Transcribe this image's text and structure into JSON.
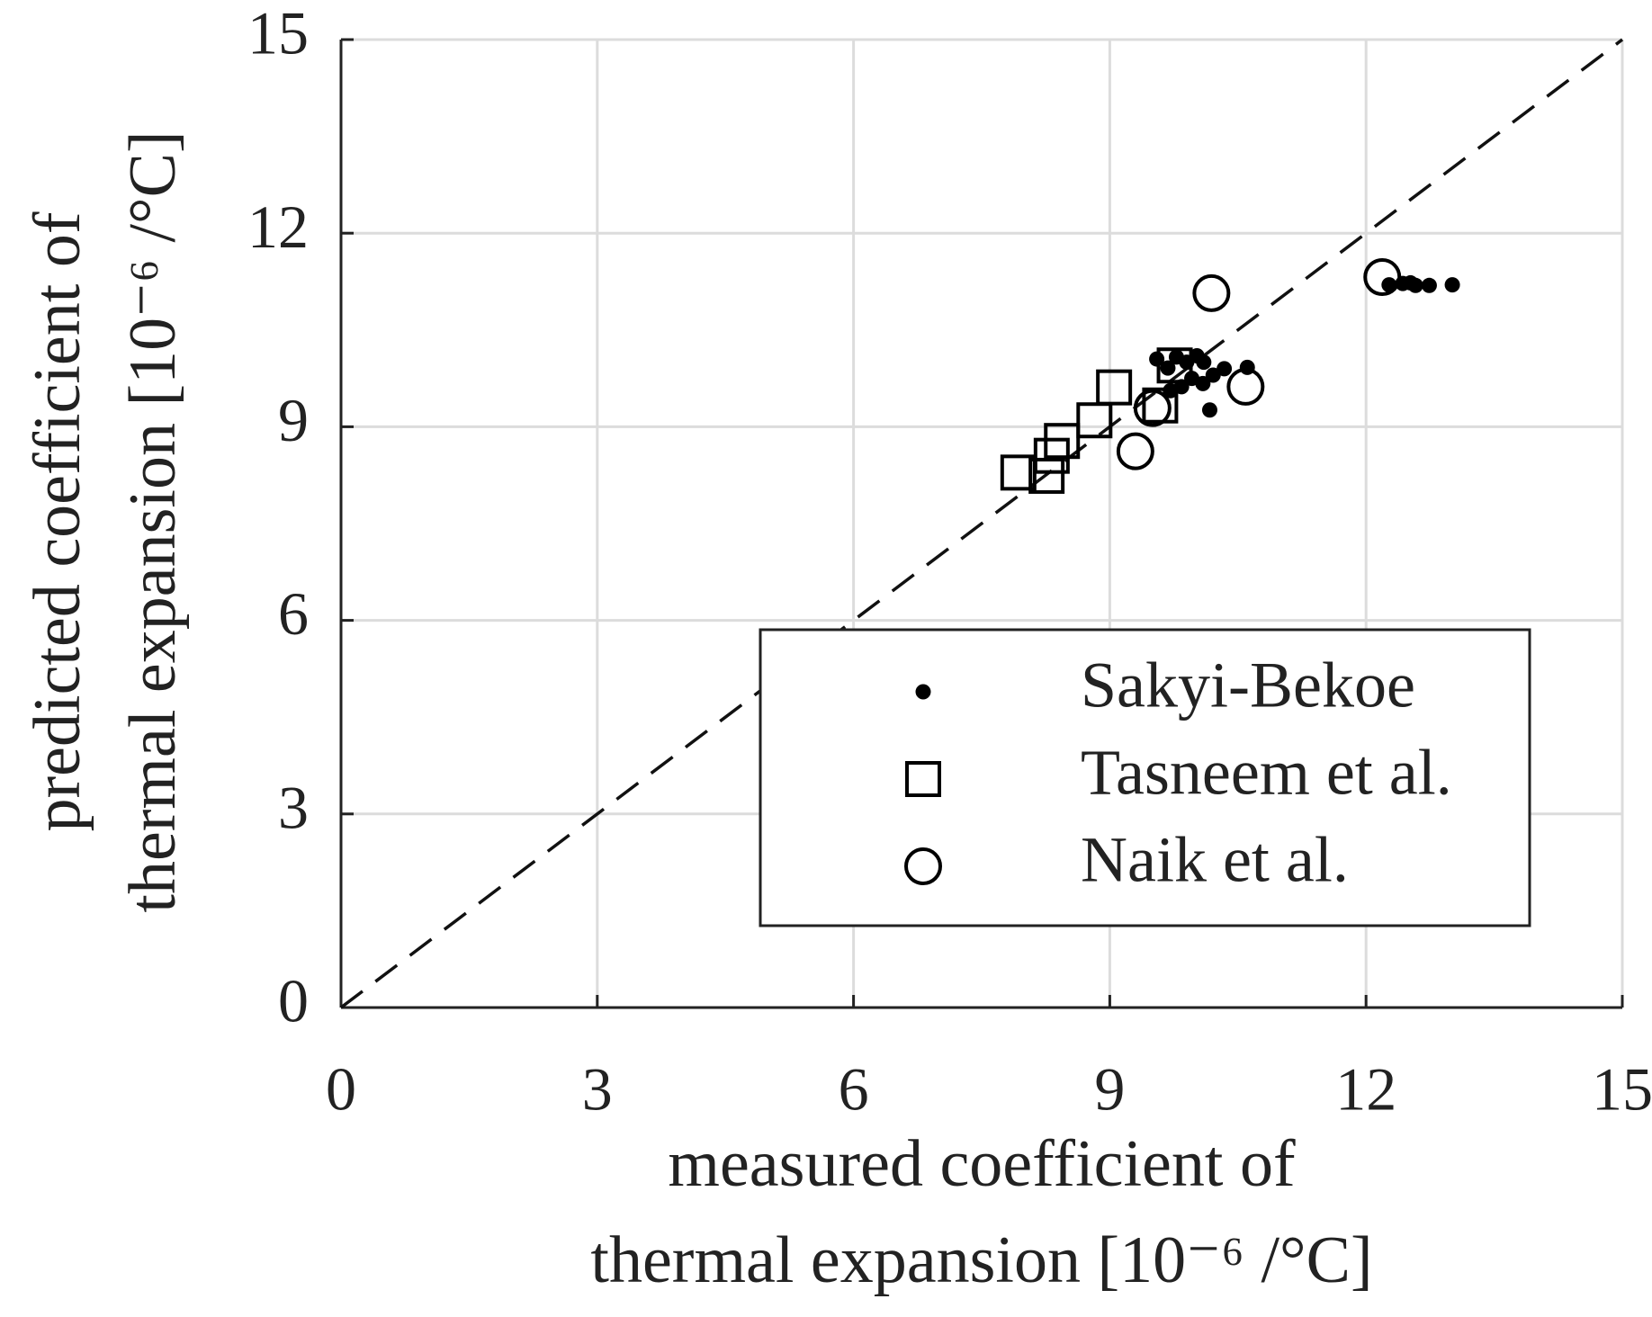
{
  "chart_data": {
    "type": "scatter",
    "xlabel": [
      "measured coefficient of",
      "thermal expansion [10⁻⁶ /°C]"
    ],
    "ylabel": [
      "predicted coefficient of",
      "thermal expansion [10⁻⁶ /°C]"
    ],
    "xlim": [
      0,
      15
    ],
    "ylim": [
      0,
      15
    ],
    "xticks": [
      0,
      3,
      6,
      9,
      12,
      15
    ],
    "yticks": [
      0,
      3,
      6,
      9,
      12,
      15
    ],
    "grid": true,
    "legend": "lower right",
    "reference_line": {
      "x": [
        0,
        15
      ],
      "y": [
        0,
        15
      ]
    },
    "series": [
      {
        "name": "Sakyi-Bekoe",
        "marker": "dot",
        "color": "#000000",
        "x": [
          9.55,
          9.68,
          9.78,
          9.9,
          10.02,
          10.1,
          9.84,
          9.96,
          10.09,
          10.21,
          10.34,
          10.61,
          10.17,
          9.71,
          12.27,
          12.43,
          12.58,
          12.74,
          13.01,
          12.52
        ],
        "y": [
          10.05,
          9.91,
          10.08,
          10.0,
          10.1,
          10.0,
          9.62,
          9.75,
          9.67,
          9.8,
          9.9,
          9.92,
          9.26,
          9.56,
          11.2,
          11.22,
          11.19,
          11.19,
          11.2,
          11.23
        ]
      },
      {
        "name": "Tasneem et al.",
        "marker": "square",
        "color": "#000000",
        "x": [
          7.93,
          8.26,
          8.32,
          8.44,
          8.82,
          9.05,
          9.59,
          9.76
        ],
        "y": [
          8.29,
          8.24,
          8.55,
          8.78,
          9.1,
          9.61,
          9.33,
          9.95
        ]
      },
      {
        "name": "Naik et al.",
        "marker": "circle",
        "color": "#000000",
        "x": [
          9.3,
          9.5,
          10.19,
          10.59,
          12.19
        ],
        "y": [
          8.62,
          9.29,
          11.07,
          9.62,
          11.32
        ]
      }
    ]
  }
}
